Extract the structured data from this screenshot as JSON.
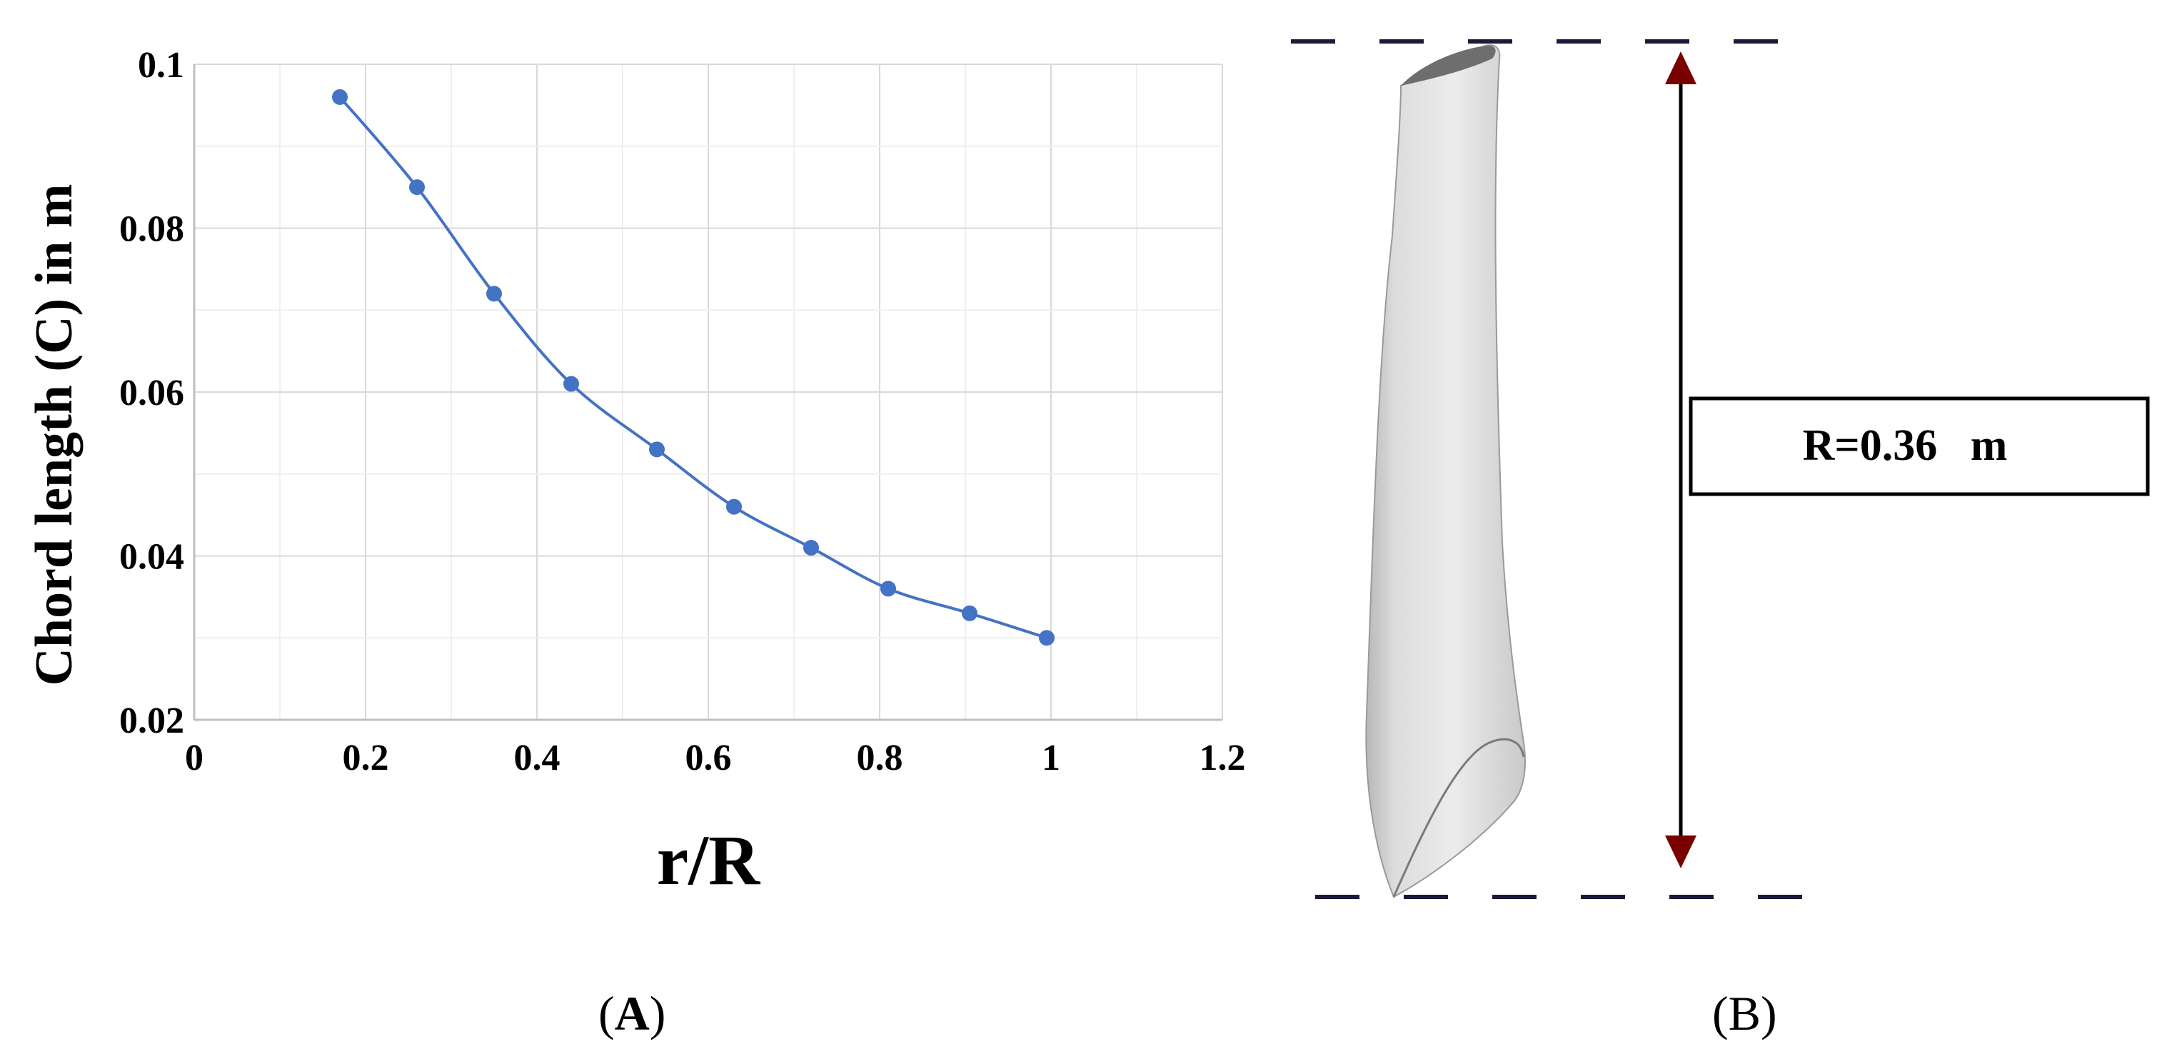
{
  "chart_data": {
    "type": "line",
    "title": "",
    "xlabel": "r/R",
    "ylabel": "Chord length (C) in m",
    "xlim": [
      0,
      1.2
    ],
    "ylim": [
      0.02,
      0.1
    ],
    "x_ticks": [
      "0",
      "0.2",
      "0.4",
      "0.6",
      "0.8",
      "1",
      "1.2"
    ],
    "y_ticks": [
      "0.02",
      "0.04",
      "0.06",
      "0.08",
      "0.1"
    ],
    "grid": true,
    "legend": "none",
    "series": [
      {
        "color": "#4472C4",
        "points": [
          {
            "x": 0.17,
            "y": 0.096
          },
          {
            "x": 0.26,
            "y": 0.085
          },
          {
            "x": 0.35,
            "y": 0.072
          },
          {
            "x": 0.44,
            "y": 0.061
          },
          {
            "x": 0.54,
            "y": 0.053
          },
          {
            "x": 0.63,
            "y": 0.046
          },
          {
            "x": 0.72,
            "y": 0.041
          },
          {
            "x": 0.81,
            "y": 0.036
          },
          {
            "x": 0.905,
            "y": 0.033
          },
          {
            "x": 0.995,
            "y": 0.03
          }
        ]
      }
    ]
  },
  "panels": {
    "a_prefix": "(",
    "a_letter": "A",
    "a_suffix": ")",
    "b_label": "(B)"
  },
  "blade_diagram": {
    "radius_label": "R=0.36   m",
    "blade_color": "#e4e4e4",
    "arrow_color": "#7a0000",
    "dash_color": "#1a1a3a"
  }
}
